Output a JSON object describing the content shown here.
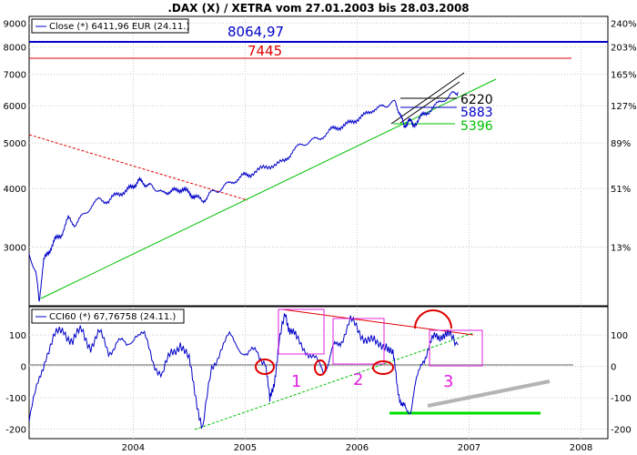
{
  "chart_data": [
    {
      "type": "line",
      "title": ".DAX (X) / XETRA vom 27.01.2003 bis 28.03.2008",
      "legend": "Close (*) 6411,96 EUR (24.11.)",
      "legend_placement": "top-left",
      "scale": "log",
      "ylim": [
        2250,
        9300
      ],
      "y_ticks_left": [
        "3000",
        "4000",
        "5000",
        "6000",
        "7000",
        "8000",
        "9000"
      ],
      "y_ticks_right": [
        "13%",
        "51%",
        "89%",
        "127%",
        "165%",
        "203%",
        "240%"
      ],
      "x_ticks": [
        "2004",
        "2005",
        "2006",
        "2007",
        "2008"
      ],
      "x_range": [
        2003.07,
        2008.24
      ],
      "grid": true,
      "series": [
        {
          "name": "Close",
          "color": "#0000c8",
          "x": [
            2003.07,
            2003.13,
            2003.16,
            2003.2,
            2003.25,
            2003.3,
            2003.36,
            2003.42,
            2003.48,
            2003.55,
            2003.62,
            2003.7,
            2003.78,
            2003.86,
            2003.94,
            2004.0,
            2004.05,
            2004.1,
            2004.15,
            2004.2,
            2004.26,
            2004.32,
            2004.38,
            2004.44,
            2004.5,
            2004.55,
            2004.62,
            2004.68,
            2004.75,
            2004.82,
            2004.9,
            2004.98,
            2005.05,
            2005.15,
            2005.25,
            2005.35,
            2005.42,
            2005.5,
            2005.58,
            2005.66,
            2005.75,
            2005.82,
            2005.9,
            2005.98,
            2006.06,
            2006.14,
            2006.22,
            2006.28,
            2006.34,
            2006.38,
            2006.42,
            2006.46,
            2006.5,
            2006.56,
            2006.62,
            2006.7,
            2006.78,
            2006.85,
            2006.9
          ],
          "y": [
            2900,
            2650,
            2300,
            2800,
            2950,
            3100,
            3200,
            3450,
            3350,
            3500,
            3650,
            3800,
            3750,
            3900,
            3950,
            4050,
            4150,
            4100,
            4050,
            4000,
            3900,
            3950,
            3950,
            4000,
            3900,
            3850,
            3750,
            3900,
            3950,
            4050,
            4150,
            4250,
            4300,
            4400,
            4500,
            4550,
            4800,
            4950,
            5050,
            5100,
            5300,
            5400,
            5450,
            5600,
            5700,
            5900,
            5950,
            6050,
            6100,
            5800,
            5400,
            5600,
            5450,
            5650,
            5800,
            6000,
            6200,
            6350,
            6412
          ]
        }
      ],
      "annotations": [
        {
          "text": "8064,97",
          "value": 8064.97,
          "color": "#0000c8"
        },
        {
          "text": "7445",
          "value": 7445,
          "color": "#e00000"
        },
        {
          "text": "6220",
          "value": 6220,
          "color": "#000000"
        },
        {
          "text": "5883",
          "value": 5883,
          "color": "#0000c8"
        },
        {
          "text": "5396",
          "value": 5396,
          "color": "#00c000"
        }
      ]
    },
    {
      "type": "line",
      "legend": "CCI60 (*) 67,76758 (24.11.)",
      "legend_placement": "top-left",
      "ylim": [
        -230,
        190
      ],
      "y_ticks": [
        "100",
        "0",
        "-100",
        "-200"
      ],
      "x_ticks": [
        "2004",
        "2005",
        "2006",
        "2007",
        "2008"
      ],
      "grid": true,
      "series": [
        {
          "name": "CCI60",
          "color": "#0000c8",
          "x": [
            2003.07,
            2003.15,
            2003.22,
            2003.3,
            2003.38,
            2003.46,
            2003.54,
            2003.62,
            2003.7,
            2003.78,
            2003.86,
            2003.94,
            2004.02,
            2004.1,
            2004.18,
            2004.26,
            2004.34,
            2004.42,
            2004.5,
            2004.56,
            2004.62,
            2004.7,
            2004.78,
            2004.86,
            2004.94,
            2005.02,
            2005.1,
            2005.18,
            2005.22,
            2005.26,
            2005.3,
            2005.36,
            2005.4,
            2005.46,
            2005.54,
            2005.62,
            2005.7,
            2005.76,
            2005.8,
            2005.86,
            2005.94,
            2006.02,
            2006.1,
            2006.18,
            2006.26,
            2006.32,
            2006.36,
            2006.4,
            2006.44,
            2006.48,
            2006.52,
            2006.58,
            2006.64,
            2006.7,
            2006.76,
            2006.82,
            2006.9
          ],
          "y": [
            -170,
            -60,
            40,
            90,
            120,
            80,
            110,
            70,
            100,
            50,
            80,
            60,
            110,
            90,
            20,
            -30,
            40,
            80,
            10,
            -90,
            -205,
            -10,
            60,
            90,
            70,
            30,
            50,
            20,
            -120,
            -40,
            60,
            170,
            120,
            80,
            60,
            20,
            -20,
            40,
            60,
            90,
            140,
            110,
            90,
            60,
            80,
            30,
            -60,
            -120,
            -150,
            -130,
            -70,
            20,
            60,
            90,
            110,
            90,
            68
          ]
        }
      ],
      "annotations": [
        {
          "text": "1",
          "color": "#e020e0"
        },
        {
          "text": "2",
          "color": "#e020e0"
        },
        {
          "text": "3",
          "color": "#e020e0"
        }
      ]
    }
  ],
  "colors": {
    "price_line": "#0000c8",
    "resistance_8064": "#0000c8",
    "resistance_7445": "#e00000",
    "trend_up": "#00c000",
    "trend_down_dashed": "#e00000",
    "boxes": "#e020e0",
    "circles": "#e00000",
    "grey_trend": "#b0b0b0"
  }
}
